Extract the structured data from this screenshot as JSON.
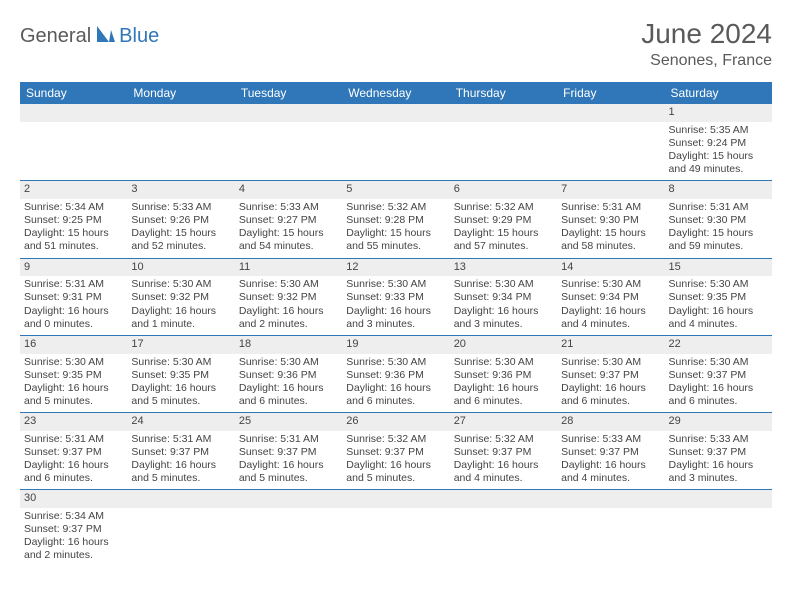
{
  "logo": {
    "part1": "General",
    "part2": "Blue"
  },
  "title": "June 2024",
  "location": "Senones, France",
  "colors": {
    "header_bg": "#2f77b8",
    "header_text": "#ffffff",
    "daynum_bg": "#eeeeee",
    "border": "#2f77b8",
    "text": "#444444",
    "logo_gray": "#5a5a5a",
    "logo_blue": "#2f77b8"
  },
  "typography": {
    "title_fontsize": 28,
    "location_fontsize": 16,
    "dayhead_fontsize": 12,
    "cell_fontsize": 10.5
  },
  "day_headers": [
    "Sunday",
    "Monday",
    "Tuesday",
    "Wednesday",
    "Thursday",
    "Friday",
    "Saturday"
  ],
  "weeks": [
    [
      {
        "empty": true
      },
      {
        "empty": true
      },
      {
        "empty": true
      },
      {
        "empty": true
      },
      {
        "empty": true
      },
      {
        "empty": true
      },
      {
        "n": "1",
        "sunrise": "Sunrise: 5:35 AM",
        "sunset": "Sunset: 9:24 PM",
        "daylight1": "Daylight: 15 hours",
        "daylight2": "and 49 minutes."
      }
    ],
    [
      {
        "n": "2",
        "sunrise": "Sunrise: 5:34 AM",
        "sunset": "Sunset: 9:25 PM",
        "daylight1": "Daylight: 15 hours",
        "daylight2": "and 51 minutes."
      },
      {
        "n": "3",
        "sunrise": "Sunrise: 5:33 AM",
        "sunset": "Sunset: 9:26 PM",
        "daylight1": "Daylight: 15 hours",
        "daylight2": "and 52 minutes."
      },
      {
        "n": "4",
        "sunrise": "Sunrise: 5:33 AM",
        "sunset": "Sunset: 9:27 PM",
        "daylight1": "Daylight: 15 hours",
        "daylight2": "and 54 minutes."
      },
      {
        "n": "5",
        "sunrise": "Sunrise: 5:32 AM",
        "sunset": "Sunset: 9:28 PM",
        "daylight1": "Daylight: 15 hours",
        "daylight2": "and 55 minutes."
      },
      {
        "n": "6",
        "sunrise": "Sunrise: 5:32 AM",
        "sunset": "Sunset: 9:29 PM",
        "daylight1": "Daylight: 15 hours",
        "daylight2": "and 57 minutes."
      },
      {
        "n": "7",
        "sunrise": "Sunrise: 5:31 AM",
        "sunset": "Sunset: 9:30 PM",
        "daylight1": "Daylight: 15 hours",
        "daylight2": "and 58 minutes."
      },
      {
        "n": "8",
        "sunrise": "Sunrise: 5:31 AM",
        "sunset": "Sunset: 9:30 PM",
        "daylight1": "Daylight: 15 hours",
        "daylight2": "and 59 minutes."
      }
    ],
    [
      {
        "n": "9",
        "sunrise": "Sunrise: 5:31 AM",
        "sunset": "Sunset: 9:31 PM",
        "daylight1": "Daylight: 16 hours",
        "daylight2": "and 0 minutes."
      },
      {
        "n": "10",
        "sunrise": "Sunrise: 5:30 AM",
        "sunset": "Sunset: 9:32 PM",
        "daylight1": "Daylight: 16 hours",
        "daylight2": "and 1 minute."
      },
      {
        "n": "11",
        "sunrise": "Sunrise: 5:30 AM",
        "sunset": "Sunset: 9:32 PM",
        "daylight1": "Daylight: 16 hours",
        "daylight2": "and 2 minutes."
      },
      {
        "n": "12",
        "sunrise": "Sunrise: 5:30 AM",
        "sunset": "Sunset: 9:33 PM",
        "daylight1": "Daylight: 16 hours",
        "daylight2": "and 3 minutes."
      },
      {
        "n": "13",
        "sunrise": "Sunrise: 5:30 AM",
        "sunset": "Sunset: 9:34 PM",
        "daylight1": "Daylight: 16 hours",
        "daylight2": "and 3 minutes."
      },
      {
        "n": "14",
        "sunrise": "Sunrise: 5:30 AM",
        "sunset": "Sunset: 9:34 PM",
        "daylight1": "Daylight: 16 hours",
        "daylight2": "and 4 minutes."
      },
      {
        "n": "15",
        "sunrise": "Sunrise: 5:30 AM",
        "sunset": "Sunset: 9:35 PM",
        "daylight1": "Daylight: 16 hours",
        "daylight2": "and 4 minutes."
      }
    ],
    [
      {
        "n": "16",
        "sunrise": "Sunrise: 5:30 AM",
        "sunset": "Sunset: 9:35 PM",
        "daylight1": "Daylight: 16 hours",
        "daylight2": "and 5 minutes."
      },
      {
        "n": "17",
        "sunrise": "Sunrise: 5:30 AM",
        "sunset": "Sunset: 9:35 PM",
        "daylight1": "Daylight: 16 hours",
        "daylight2": "and 5 minutes."
      },
      {
        "n": "18",
        "sunrise": "Sunrise: 5:30 AM",
        "sunset": "Sunset: 9:36 PM",
        "daylight1": "Daylight: 16 hours",
        "daylight2": "and 6 minutes."
      },
      {
        "n": "19",
        "sunrise": "Sunrise: 5:30 AM",
        "sunset": "Sunset: 9:36 PM",
        "daylight1": "Daylight: 16 hours",
        "daylight2": "and 6 minutes."
      },
      {
        "n": "20",
        "sunrise": "Sunrise: 5:30 AM",
        "sunset": "Sunset: 9:36 PM",
        "daylight1": "Daylight: 16 hours",
        "daylight2": "and 6 minutes."
      },
      {
        "n": "21",
        "sunrise": "Sunrise: 5:30 AM",
        "sunset": "Sunset: 9:37 PM",
        "daylight1": "Daylight: 16 hours",
        "daylight2": "and 6 minutes."
      },
      {
        "n": "22",
        "sunrise": "Sunrise: 5:30 AM",
        "sunset": "Sunset: 9:37 PM",
        "daylight1": "Daylight: 16 hours",
        "daylight2": "and 6 minutes."
      }
    ],
    [
      {
        "n": "23",
        "sunrise": "Sunrise: 5:31 AM",
        "sunset": "Sunset: 9:37 PM",
        "daylight1": "Daylight: 16 hours",
        "daylight2": "and 6 minutes."
      },
      {
        "n": "24",
        "sunrise": "Sunrise: 5:31 AM",
        "sunset": "Sunset: 9:37 PM",
        "daylight1": "Daylight: 16 hours",
        "daylight2": "and 5 minutes."
      },
      {
        "n": "25",
        "sunrise": "Sunrise: 5:31 AM",
        "sunset": "Sunset: 9:37 PM",
        "daylight1": "Daylight: 16 hours",
        "daylight2": "and 5 minutes."
      },
      {
        "n": "26",
        "sunrise": "Sunrise: 5:32 AM",
        "sunset": "Sunset: 9:37 PM",
        "daylight1": "Daylight: 16 hours",
        "daylight2": "and 5 minutes."
      },
      {
        "n": "27",
        "sunrise": "Sunrise: 5:32 AM",
        "sunset": "Sunset: 9:37 PM",
        "daylight1": "Daylight: 16 hours",
        "daylight2": "and 4 minutes."
      },
      {
        "n": "28",
        "sunrise": "Sunrise: 5:33 AM",
        "sunset": "Sunset: 9:37 PM",
        "daylight1": "Daylight: 16 hours",
        "daylight2": "and 4 minutes."
      },
      {
        "n": "29",
        "sunrise": "Sunrise: 5:33 AM",
        "sunset": "Sunset: 9:37 PM",
        "daylight1": "Daylight: 16 hours",
        "daylight2": "and 3 minutes."
      }
    ],
    [
      {
        "n": "30",
        "sunrise": "Sunrise: 5:34 AM",
        "sunset": "Sunset: 9:37 PM",
        "daylight1": "Daylight: 16 hours",
        "daylight2": "and 2 minutes."
      },
      {
        "empty": true
      },
      {
        "empty": true
      },
      {
        "empty": true
      },
      {
        "empty": true
      },
      {
        "empty": true
      },
      {
        "empty": true
      }
    ]
  ]
}
